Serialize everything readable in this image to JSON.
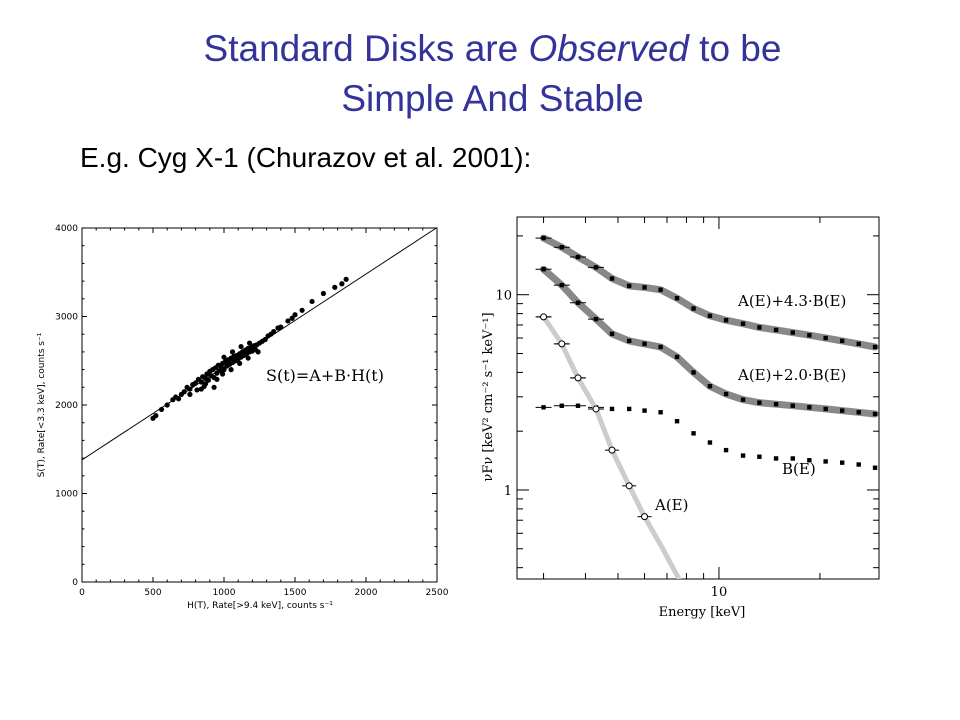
{
  "title": {
    "line1_pre": "Standard Disks are ",
    "line1_em": "Observed",
    "line1_post": " to be",
    "line2": "Simple And Stable"
  },
  "subtitle": "E.g. Cyg X-1 (Churazov et al. 2001):",
  "chart_data": [
    {
      "type": "scatter",
      "xlabel": "H(T), Rate[>9.4 keV], counts s⁻¹",
      "ylabel": "S(T), Rate[<3.3 keV], counts s⁻¹",
      "xlim": [
        0,
        2500
      ],
      "ylim": [
        0,
        4000
      ],
      "xticks": [
        "0",
        "500",
        "1000",
        "1500",
        "2000",
        "2500"
      ],
      "yticks": [
        "0",
        "1000",
        "2000",
        "3000",
        "4000"
      ],
      "annotation": "S(t)=A+B·H(t)",
      "fit_line": {
        "intercept": 1380,
        "slope": 1.05
      },
      "points": [
        [
          500,
          1850
        ],
        [
          520,
          1880
        ],
        [
          560,
          1950
        ],
        [
          600,
          2000
        ],
        [
          640,
          2060
        ],
        [
          660,
          2090
        ],
        [
          680,
          2070
        ],
        [
          700,
          2120
        ],
        [
          720,
          2150
        ],
        [
          740,
          2200
        ],
        [
          760,
          2180
        ],
        [
          780,
          2230
        ],
        [
          800,
          2250
        ],
        [
          810,
          2170
        ],
        [
          820,
          2290
        ],
        [
          840,
          2260
        ],
        [
          850,
          2320
        ],
        [
          860,
          2210
        ],
        [
          870,
          2300
        ],
        [
          880,
          2350
        ],
        [
          890,
          2280
        ],
        [
          900,
          2380
        ],
        [
          910,
          2330
        ],
        [
          920,
          2400
        ],
        [
          930,
          2310
        ],
        [
          940,
          2420
        ],
        [
          950,
          2360
        ],
        [
          960,
          2450
        ],
        [
          970,
          2390
        ],
        [
          980,
          2430
        ],
        [
          990,
          2470
        ],
        [
          1000,
          2400
        ],
        [
          1010,
          2490
        ],
        [
          1020,
          2440
        ],
        [
          1030,
          2510
        ],
        [
          1040,
          2460
        ],
        [
          1050,
          2530
        ],
        [
          1060,
          2480
        ],
        [
          1070,
          2550
        ],
        [
          1080,
          2500
        ],
        [
          1090,
          2560
        ],
        [
          1100,
          2520
        ],
        [
          1110,
          2580
        ],
        [
          1120,
          2540
        ],
        [
          1130,
          2600
        ],
        [
          1140,
          2560
        ],
        [
          1150,
          2620
        ],
        [
          1160,
          2580
        ],
        [
          1170,
          2640
        ],
        [
          1180,
          2600
        ],
        [
          1190,
          2650
        ],
        [
          1200,
          2610
        ],
        [
          1210,
          2670
        ],
        [
          1220,
          2630
        ],
        [
          1230,
          2680
        ],
        [
          1250,
          2700
        ],
        [
          1270,
          2720
        ],
        [
          1290,
          2740
        ],
        [
          1310,
          2780
        ],
        [
          1330,
          2800
        ],
        [
          1350,
          2830
        ],
        [
          1380,
          2870
        ],
        [
          1400,
          2880
        ],
        [
          1450,
          2950
        ],
        [
          1480,
          2980
        ],
        [
          1500,
          3020
        ],
        [
          1550,
          3070
        ],
        [
          1620,
          3170
        ],
        [
          1700,
          3260
        ],
        [
          1780,
          3330
        ],
        [
          1830,
          3370
        ],
        [
          1860,
          3420
        ],
        [
          870,
          2240
        ],
        [
          930,
          2200
        ],
        [
          990,
          2350
        ],
        [
          1050,
          2400
        ],
        [
          1110,
          2470
        ],
        [
          1170,
          2530
        ],
        [
          1000,
          2540
        ],
        [
          1060,
          2600
        ],
        [
          1120,
          2660
        ],
        [
          1180,
          2700
        ],
        [
          760,
          2120
        ],
        [
          840,
          2180
        ],
        [
          950,
          2290
        ],
        [
          1240,
          2600
        ]
      ]
    },
    {
      "type": "scatter",
      "xlabel": "Energy [keV]",
      "ylabel": "νFν [keV² cm⁻² s⁻¹ keV⁻¹]",
      "xscale": "log",
      "yscale": "log",
      "xlim": [
        2.5,
        30
      ],
      "ylim": [
        0.35,
        25
      ],
      "xticks": [
        "10"
      ],
      "yticks": [
        "1",
        "10"
      ],
      "series": [
        {
          "name": "A(E)+4.3·B(E)",
          "x": [
            3.0,
            3.4,
            3.8,
            4.3,
            4.8,
            5.4,
            6.0,
            6.7,
            7.5,
            8.4,
            9.4,
            10.5,
            11.8,
            13.2,
            14.8,
            16.6,
            18.6,
            20.8,
            23.3,
            26.1,
            29.2
          ],
          "y": [
            19.5,
            17.5,
            15.6,
            13.8,
            12.1,
            11.1,
            10.9,
            10.6,
            9.6,
            8.5,
            7.8,
            7.4,
            7.1,
            6.8,
            6.6,
            6.4,
            6.2,
            6.0,
            5.8,
            5.6,
            5.4
          ]
        },
        {
          "name": "A(E)+2.0·B(E)",
          "x": [
            3.0,
            3.4,
            3.8,
            4.3,
            4.8,
            5.4,
            6.0,
            6.7,
            7.5,
            8.4,
            9.4,
            10.5,
            11.8,
            13.2,
            14.8,
            16.6,
            18.6,
            20.8,
            23.3,
            26.1,
            29.2
          ],
          "y": [
            13.5,
            11.2,
            9.1,
            7.5,
            6.3,
            5.8,
            5.6,
            5.4,
            4.8,
            4.0,
            3.4,
            3.1,
            2.9,
            2.8,
            2.75,
            2.7,
            2.65,
            2.6,
            2.55,
            2.5,
            2.45
          ]
        },
        {
          "name": "B(E)",
          "x": [
            3.0,
            3.4,
            3.8,
            4.3,
            4.8,
            5.4,
            6.0,
            6.7,
            7.5,
            8.4,
            9.4,
            10.5,
            11.8,
            13.2,
            14.8,
            16.6,
            18.6,
            20.8,
            23.3,
            26.1,
            29.2
          ],
          "y": [
            2.65,
            2.7,
            2.7,
            2.65,
            2.6,
            2.6,
            2.55,
            2.5,
            2.25,
            1.95,
            1.75,
            1.6,
            1.5,
            1.48,
            1.45,
            1.45,
            1.42,
            1.4,
            1.38,
            1.35,
            1.3
          ]
        },
        {
          "name": "A(E)",
          "x": [
            3.0,
            3.4,
            3.8,
            4.3,
            4.8,
            5.4,
            6.0
          ],
          "y": [
            7.7,
            5.6,
            3.75,
            2.6,
            1.6,
            1.05,
            0.73
          ]
        }
      ]
    }
  ]
}
